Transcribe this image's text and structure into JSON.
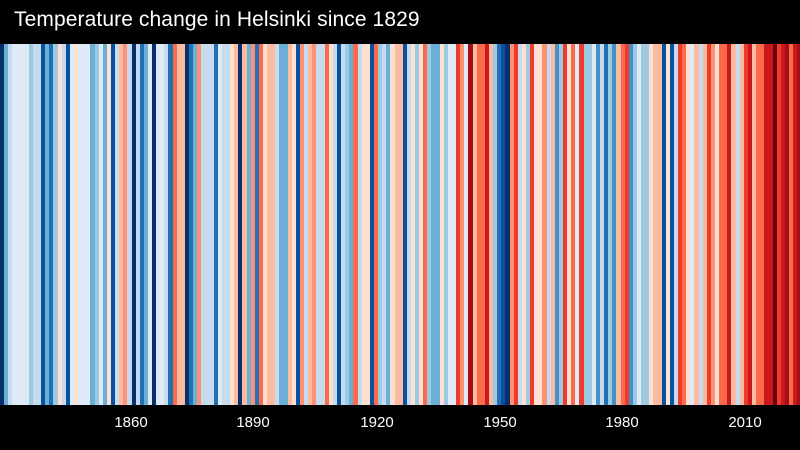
{
  "title": "Temperature change in Helsinki since 1829",
  "colors": {
    "background": "#000000",
    "text": "#ffffff"
  },
  "chart_data": {
    "type": "heatmap",
    "title": "Temperature change in Helsinki since 1829",
    "xlabel": "",
    "ylabel": "",
    "x_start": 1829,
    "x_end": 2023,
    "xlim": [
      1829,
      2024
    ],
    "grid": false,
    "legend": "none",
    "x_ticks": [
      1860,
      1890,
      1920,
      1950,
      1980,
      2010
    ],
    "tick_labels": [
      "1860",
      "1890",
      "1920",
      "1950",
      "1980",
      "2010"
    ],
    "palette_note": "Colors encode temperature anomaly: deep blue = coldest, white = average, deep red = warmest",
    "stripe_colors": [
      "#08306b",
      "#6baed6",
      "#c6dbef",
      "#deebf7",
      "#deebf7",
      "#deebf7",
      "#deebf7",
      "#9ecae1",
      "#c6dbef",
      "#c6dbef",
      "#08519c",
      "#6baed6",
      "#2171b5",
      "#9ecae1",
      "#fee0d2",
      "#c6dbef",
      "#08519c",
      "#deebf7",
      "#fee0d2",
      "#deebf7",
      "#deebf7",
      "#deebf7",
      "#6baed6",
      "#9ecae1",
      "#deebf7",
      "#6baed6",
      "#fee0d2",
      "#08519c",
      "#c6dbef",
      "#fcbba1",
      "#fc9272",
      "#c6dbef",
      "#08306b",
      "#c6dbef",
      "#2171b5",
      "#6baed6",
      "#deebf7",
      "#08306b",
      "#deebf7",
      "#deebf7",
      "#c6dbef",
      "#2171b5",
      "#fb6a4a",
      "#fcbba1",
      "#fcbba1",
      "#08306b",
      "#2171b5",
      "#6baed6",
      "#fc9272",
      "#c6dbef",
      "#c6dbef",
      "#c6dbef",
      "#2171b5",
      "#deebf7",
      "#c6dbef",
      "#c6dbef",
      "#fee0d2",
      "#fcbba1",
      "#08306b",
      "#fcbba1",
      "#6baed6",
      "#fc9272",
      "#2171b5",
      "#fb6a4a",
      "#fee0d2",
      "#fcbba1",
      "#fcbba1",
      "#c6dbef",
      "#6baed6",
      "#6baed6",
      "#fcbba1",
      "#fee0d2",
      "#08519c",
      "#fc9272",
      "#c6dbef",
      "#fcbba1",
      "#fc9272",
      "#c6dbef",
      "#c6dbef",
      "#fb6a4a",
      "#fee0d2",
      "#c6dbef",
      "#08519c",
      "#c6dbef",
      "#9ecae1",
      "#6baed6",
      "#fb6a4a",
      "#c6dbef",
      "#fee0d2",
      "#fee0d2",
      "#08519c",
      "#fb6a4a",
      "#9ecae1",
      "#c6dbef",
      "#6baed6",
      "#fee0d2",
      "#fcbba1",
      "#fcbba1",
      "#08519c",
      "#c6dbef",
      "#fee0d2",
      "#9ecae1",
      "#fee0d2",
      "#fb6a4a",
      "#9ecae1",
      "#6baed6",
      "#6baed6",
      "#fee0d2",
      "#9ecae1",
      "#deebf7",
      "#deebf7",
      "#ef3b2c",
      "#fc9272",
      "#deebf7",
      "#a50f15",
      "#fcbba1",
      "#fb6a4a",
      "#fb6a4a",
      "#cb181d",
      "#fcbba1",
      "#9ecae1",
      "#2171b5",
      "#08519c",
      "#08306b",
      "#fc9272",
      "#ef3b2c",
      "#c6dbef",
      "#fee0d2",
      "#9ecae1",
      "#ef3b2c",
      "#fee0d2",
      "#fee0d2",
      "#fc9272",
      "#c6dbef",
      "#fcbba1",
      "#4292c6",
      "#9ecae1",
      "#ef3b2c",
      "#fee0d2",
      "#fb6a4a",
      "#deebf7",
      "#ef3b2c",
      "#9ecae1",
      "#9ecae1",
      "#deebf7",
      "#4292c6",
      "#c6dbef",
      "#2171b5",
      "#9ecae1",
      "#4292c6",
      "#fcbba1",
      "#fb6a4a",
      "#ef3b2c",
      "#4292c6",
      "#9ecae1",
      "#deebf7",
      "#9ecae1",
      "#9ecae1",
      "#fee0d2",
      "#fcbba1",
      "#fcbba1",
      "#08519c",
      "#fee0d2",
      "#08519c",
      "#c6dbef",
      "#ef3b2c",
      "#fb6a4a",
      "#fee0d2",
      "#deebf7",
      "#fcbba1",
      "#c6dbef",
      "#fcbba1",
      "#ef3b2c",
      "#fc9272",
      "#fee0d2",
      "#fb6a4a",
      "#fb6a4a",
      "#cb181d",
      "#fcbba1",
      "#c6dbef",
      "#fcbba1",
      "#ef3b2c",
      "#cb181d",
      "#fcbba1",
      "#fb6a4a",
      "#fb6a4a",
      "#cb181d",
      "#cb181d",
      "#67000d",
      "#ef3b2c",
      "#cb181d",
      "#a50f15",
      "#fb6a4a",
      "#cb181d",
      "#a50f15"
    ]
  },
  "axis": {
    "ticks": [
      {
        "label": "1860",
        "x": 131
      },
      {
        "label": "1890",
        "x": 253
      },
      {
        "label": "1920",
        "x": 377
      },
      {
        "label": "1950",
        "x": 500
      },
      {
        "label": "1980",
        "x": 622
      },
      {
        "label": "2010",
        "x": 745
      }
    ]
  }
}
